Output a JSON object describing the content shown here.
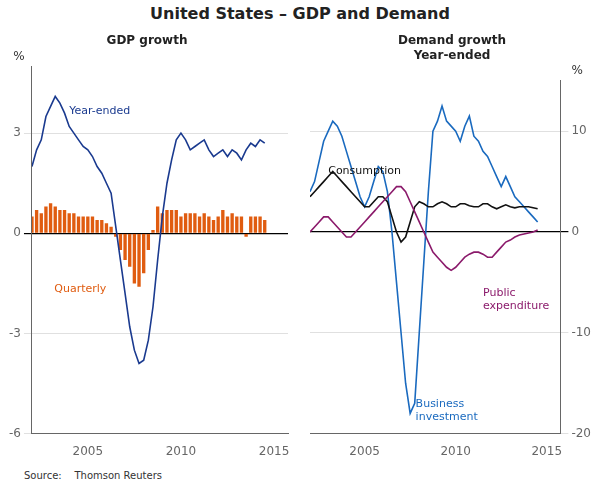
{
  "title": "United States – GDP and Demand",
  "source": "Source:    Thomson Reuters",
  "chart_data": [
    {
      "type": "bar",
      "title": "GDP growth",
      "ylabel": "%",
      "x": [
        2002,
        2002.25,
        2002.5,
        2002.75,
        2003,
        2003.25,
        2003.5,
        2003.75,
        2004,
        2004.25,
        2004.5,
        2004.75,
        2005,
        2005.25,
        2005.5,
        2005.75,
        2006,
        2006.25,
        2006.5,
        2006.75,
        2007,
        2007.25,
        2007.5,
        2007.75,
        2008,
        2008.25,
        2008.5,
        2008.75,
        2009,
        2009.25,
        2009.5,
        2009.75,
        2010,
        2010.25,
        2010.5,
        2010.75,
        2011,
        2011.25,
        2011.5,
        2011.75,
        2012,
        2012.25,
        2012.5,
        2012.75,
        2013,
        2013.25,
        2013.5,
        2013.75,
        2014,
        2014.25,
        2014.5
      ],
      "series": [
        {
          "name": "Quarterly",
          "type": "bar",
          "color": "#e05c10",
          "values": [
            0.5,
            0.7,
            0.6,
            0.8,
            0.9,
            0.8,
            0.7,
            0.7,
            0.6,
            0.6,
            0.5,
            0.5,
            0.5,
            0.5,
            0.4,
            0.4,
            0.3,
            0.2,
            -0.1,
            -0.5,
            -0.8,
            -1.0,
            -1.5,
            -1.6,
            -1.2,
            -0.5,
            0.1,
            0.8,
            0.6,
            0.7,
            0.7,
            0.7,
            0.5,
            0.6,
            0.6,
            0.6,
            0.5,
            0.6,
            0.5,
            0.4,
            0.5,
            0.7,
            0.5,
            0.6,
            0.5,
            0.5,
            -0.1,
            0.5,
            0.5,
            0.5,
            0.4
          ]
        },
        {
          "name": "Year-ended",
          "type": "line",
          "color": "#1a3a8f",
          "values": [
            2.0,
            2.5,
            2.8,
            3.5,
            3.8,
            4.1,
            3.9,
            3.6,
            3.2,
            3.0,
            2.8,
            2.6,
            2.5,
            2.3,
            2.0,
            1.8,
            1.5,
            1.2,
            0.2,
            -0.8,
            -1.8,
            -2.8,
            -3.5,
            -3.9,
            -3.8,
            -3.2,
            -2.2,
            -0.8,
            0.5,
            1.5,
            2.2,
            2.8,
            3.0,
            2.8,
            2.5,
            2.6,
            2.7,
            2.8,
            2.5,
            2.3,
            2.4,
            2.5,
            2.3,
            2.5,
            2.4,
            2.2,
            2.5,
            2.7,
            2.6,
            2.8,
            2.7
          ]
        }
      ],
      "xlim": [
        2002,
        2015.75
      ],
      "xticks": [
        2005,
        2010,
        2015
      ],
      "ylim": [
        -6,
        5
      ],
      "yticks": [
        -6,
        -3,
        0,
        3
      ],
      "grid": "y",
      "annotations": [
        {
          "text": "Year-ended",
          "x": 2004.0,
          "y": 3.5,
          "color": "#1a3a8f"
        },
        {
          "text": "Quarterly",
          "x": 2003.2,
          "y": -1.5,
          "color": "#e05c10"
        }
      ]
    },
    {
      "type": "line",
      "title": "Demand growth\nYear-ended",
      "ylabel": "%",
      "x": [
        2002,
        2002.25,
        2002.5,
        2002.75,
        2003,
        2003.25,
        2003.5,
        2003.75,
        2004,
        2004.25,
        2004.5,
        2004.75,
        2005,
        2005.25,
        2005.5,
        2005.75,
        2006,
        2006.25,
        2006.5,
        2006.75,
        2007,
        2007.25,
        2007.5,
        2007.75,
        2008,
        2008.25,
        2008.5,
        2008.75,
        2009,
        2009.25,
        2009.5,
        2009.75,
        2010,
        2010.25,
        2010.5,
        2010.75,
        2011,
        2011.25,
        2011.5,
        2011.75,
        2012,
        2012.25,
        2012.5,
        2012.75,
        2013,
        2013.25,
        2013.5,
        2013.75,
        2014,
        2014.25,
        2014.5
      ],
      "series": [
        {
          "name": "Business\ninvestment",
          "color": "#1a6abf",
          "values": [
            4.0,
            5.0,
            7.0,
            9.0,
            10.0,
            11.0,
            10.5,
            9.5,
            8.0,
            6.5,
            5.0,
            3.5,
            2.5,
            3.5,
            5.0,
            6.5,
            6.0,
            4.0,
            0.0,
            -5.0,
            -10.0,
            -15.0,
            -18.0,
            -17.0,
            -10.0,
            -3.0,
            4.0,
            10.0,
            11.0,
            12.5,
            11.0,
            10.5,
            10.0,
            9.0,
            10.5,
            11.5,
            9.5,
            9.0,
            8.0,
            7.5,
            6.5,
            5.5,
            4.5,
            5.5,
            4.5,
            3.5,
            3.0,
            2.5,
            2.0,
            1.5,
            1.0
          ]
        },
        {
          "name": "Consumption",
          "color": "#111111",
          "values": [
            3.5,
            4.0,
            4.5,
            5.0,
            5.5,
            6.0,
            5.5,
            5.0,
            4.5,
            4.0,
            3.5,
            3.0,
            2.5,
            2.5,
            3.0,
            3.5,
            3.5,
            3.0,
            1.5,
            0.0,
            -1.0,
            -0.5,
            1.0,
            2.5,
            3.0,
            2.8,
            2.5,
            2.5,
            2.8,
            3.0,
            2.8,
            2.5,
            2.5,
            2.8,
            2.8,
            2.6,
            2.5,
            2.5,
            2.8,
            2.8,
            2.5,
            2.3,
            2.5,
            2.7,
            2.5,
            2.4,
            2.5,
            2.5,
            2.5,
            2.4,
            2.3
          ]
        },
        {
          "name": "Public\nexpenditure",
          "color": "#8b1a6b",
          "values": [
            0.0,
            0.5,
            1.0,
            1.5,
            1.5,
            1.0,
            0.5,
            0.0,
            -0.5,
            -0.5,
            0.0,
            0.5,
            1.0,
            1.5,
            2.0,
            2.5,
            3.0,
            3.5,
            4.0,
            4.5,
            4.5,
            4.0,
            3.0,
            2.0,
            1.0,
            0.0,
            -1.0,
            -2.0,
            -2.5,
            -3.0,
            -3.5,
            -3.8,
            -3.5,
            -3.0,
            -2.5,
            -2.2,
            -2.0,
            -2.0,
            -2.2,
            -2.5,
            -2.5,
            -2.0,
            -1.5,
            -1.0,
            -0.8,
            -0.5,
            -0.3,
            -0.2,
            -0.1,
            0.0,
            0.2
          ]
        }
      ],
      "xlim": [
        2002,
        2015.75
      ],
      "xticks": [
        2005,
        2010,
        2015
      ],
      "ylim": [
        -20,
        15
      ],
      "yticks": [
        -20,
        -10,
        0,
        10
      ],
      "grid": "y",
      "annotations": [
        {
          "text": "Consumption",
          "x": 2003.0,
          "y": 5.5,
          "color": "#111111"
        },
        {
          "text": "Public\nexpenditure",
          "x": 2011.5,
          "y": -5.5,
          "color": "#8b1a6b"
        },
        {
          "text": "Business\ninvestment",
          "x": 2007.8,
          "y": -16.5,
          "color": "#1a6abf"
        }
      ]
    }
  ]
}
